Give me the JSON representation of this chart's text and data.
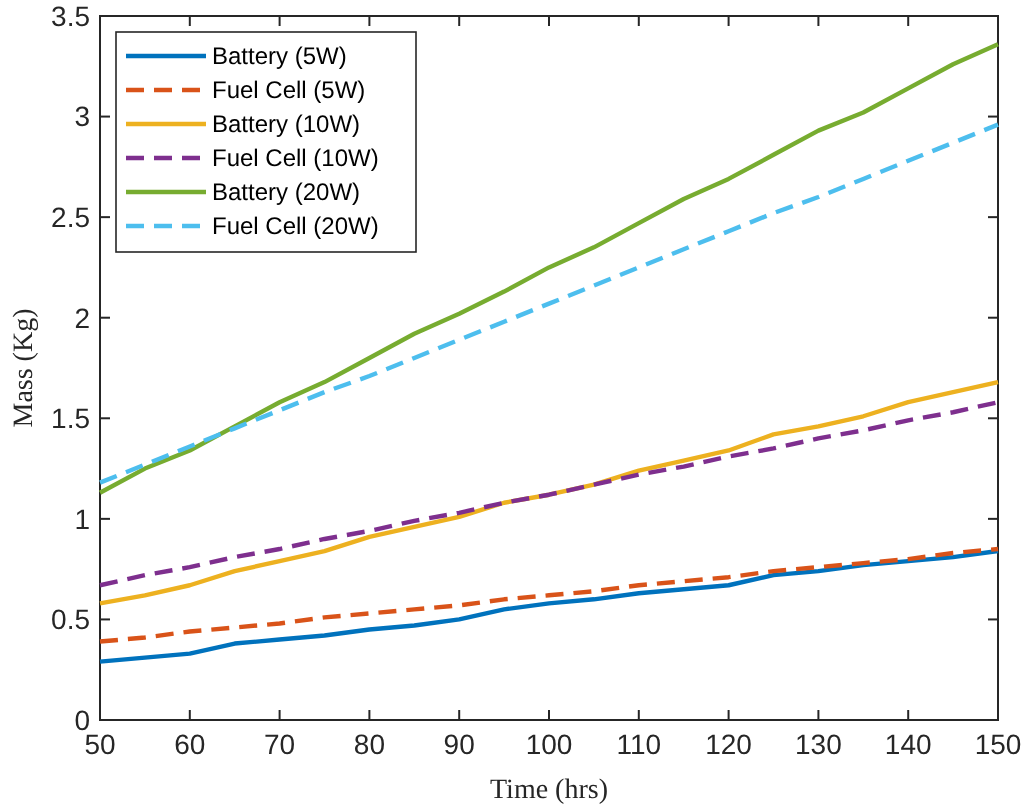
{
  "chart_data": {
    "type": "line",
    "xlabel": "Time (hrs)",
    "ylabel": "Mass (Kg)",
    "xlim": [
      50,
      150
    ],
    "ylim": [
      0,
      3.5
    ],
    "xticks": [
      50,
      60,
      70,
      80,
      90,
      100,
      110,
      120,
      130,
      140,
      150
    ],
    "yticks": [
      0,
      0.5,
      1,
      1.5,
      2,
      2.5,
      3,
      3.5
    ],
    "grid": false,
    "legend": "top left",
    "marker": "none",
    "x": [
      50,
      55,
      60,
      65,
      70,
      75,
      80,
      85,
      90,
      95,
      100,
      105,
      110,
      115,
      120,
      125,
      130,
      135,
      140,
      145,
      150
    ],
    "series": [
      {
        "name": "Battery (5W)",
        "color": "#0072bd",
        "line_style": "solid",
        "values": [
          0.29,
          0.31,
          0.33,
          0.38,
          0.4,
          0.42,
          0.45,
          0.47,
          0.5,
          0.55,
          0.58,
          0.6,
          0.63,
          0.65,
          0.67,
          0.72,
          0.74,
          0.77,
          0.79,
          0.81,
          0.84
        ]
      },
      {
        "name": "Fuel Cell (5W)",
        "color": "#d95319",
        "line_style": "dashed",
        "values": [
          0.39,
          0.41,
          0.44,
          0.46,
          0.48,
          0.51,
          0.53,
          0.55,
          0.57,
          0.6,
          0.62,
          0.64,
          0.67,
          0.69,
          0.71,
          0.74,
          0.76,
          0.78,
          0.8,
          0.83,
          0.85
        ]
      },
      {
        "name": "Battery (10W)",
        "color": "#edb120",
        "line_style": "solid",
        "values": [
          0.58,
          0.62,
          0.67,
          0.74,
          0.79,
          0.84,
          0.91,
          0.96,
          1.01,
          1.08,
          1.12,
          1.17,
          1.24,
          1.29,
          1.34,
          1.42,
          1.46,
          1.51,
          1.58,
          1.63,
          1.68
        ]
      },
      {
        "name": "Fuel Cell (10W)",
        "color": "#7e2f8e",
        "line_style": "dashed",
        "values": [
          0.67,
          0.72,
          0.76,
          0.81,
          0.85,
          0.9,
          0.94,
          0.99,
          1.03,
          1.08,
          1.12,
          1.17,
          1.22,
          1.26,
          1.31,
          1.35,
          1.4,
          1.44,
          1.49,
          1.53,
          1.58
        ]
      },
      {
        "name": "Battery (20W)",
        "color": "#77ac30",
        "line_style": "solid",
        "values": [
          1.13,
          1.25,
          1.34,
          1.46,
          1.58,
          1.68,
          1.8,
          1.92,
          2.02,
          2.13,
          2.25,
          2.35,
          2.47,
          2.59,
          2.69,
          2.81,
          2.93,
          3.02,
          3.14,
          3.26,
          3.36
        ]
      },
      {
        "name": "Fuel Cell (20W)",
        "color": "#4dbeee",
        "line_style": "dashed",
        "values": [
          1.18,
          1.27,
          1.36,
          1.45,
          1.54,
          1.63,
          1.71,
          1.8,
          1.89,
          1.98,
          2.07,
          2.16,
          2.25,
          2.34,
          2.43,
          2.52,
          2.6,
          2.69,
          2.78,
          2.87,
          2.96
        ]
      }
    ]
  }
}
